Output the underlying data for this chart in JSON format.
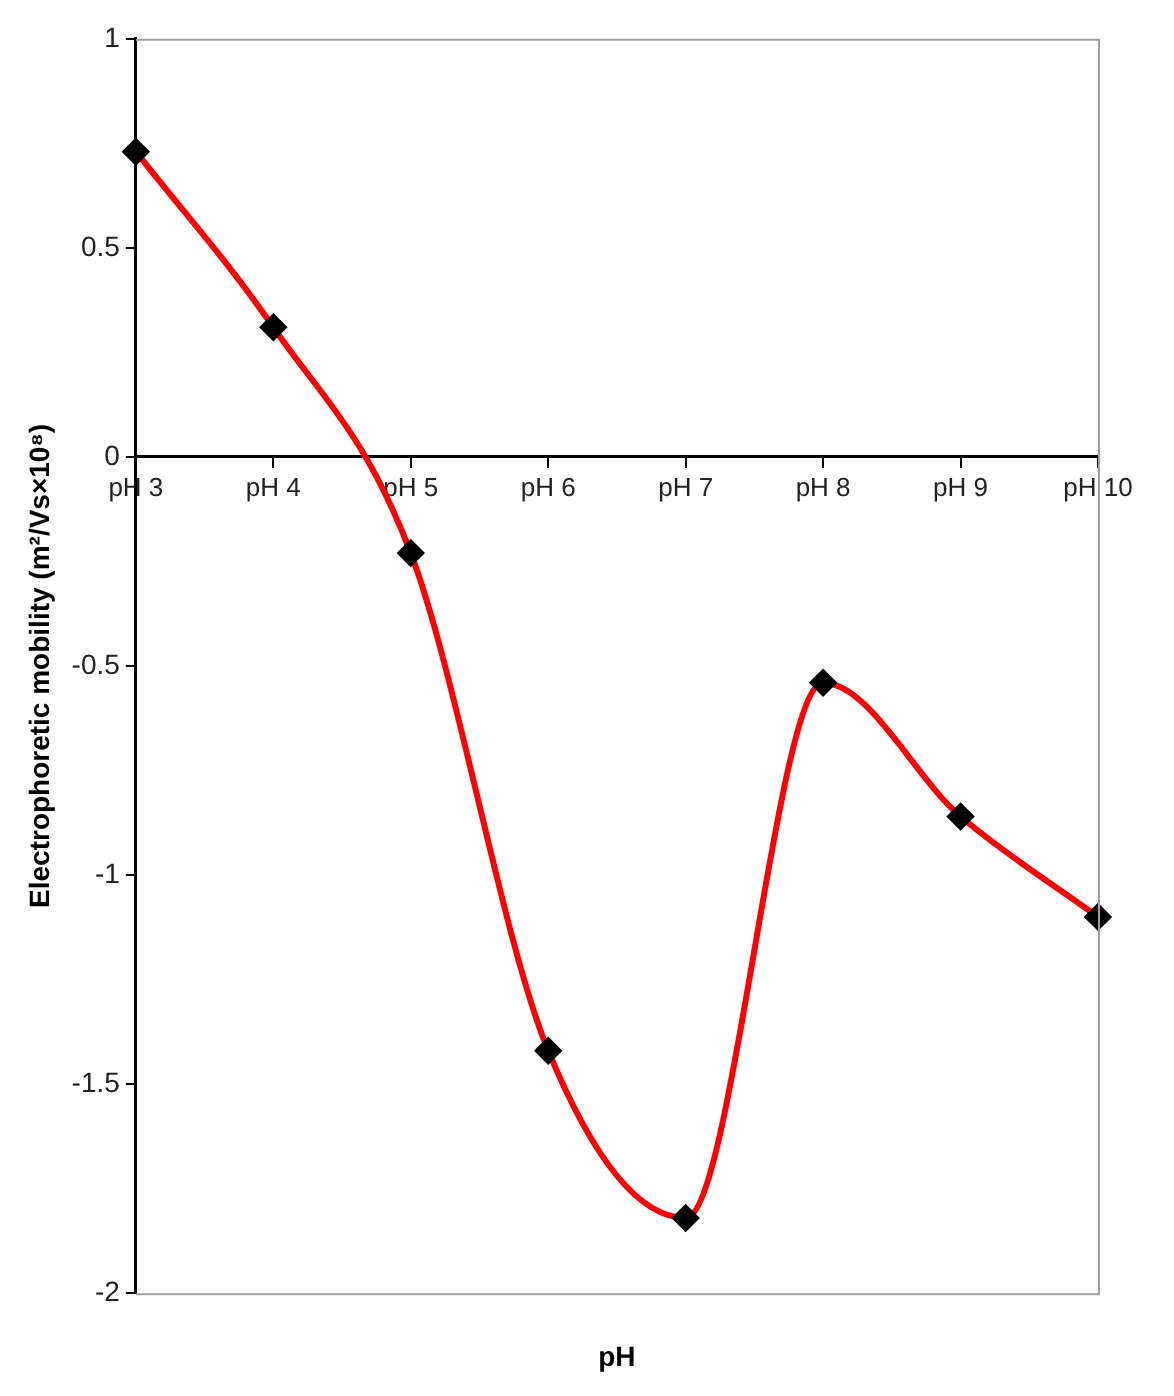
{
  "chart_data": {
    "type": "line",
    "xlabel": "pH",
    "ylabel": "Electrophoretic mobility (m²/Vs×10⁸)",
    "categories": [
      "pH 3",
      "pH 4",
      "pH 5",
      "pH 6",
      "pH 7",
      "pH 8",
      "pH 9",
      "pH 10"
    ],
    "series": [
      {
        "color": "#ff0000",
        "values": [
          0.73,
          0.31,
          -0.23,
          -1.42,
          -1.82,
          -0.54,
          -0.86,
          -1.1
        ]
      }
    ],
    "ylim": [
      -2,
      1
    ],
    "yticks": [
      -2,
      -1.5,
      -1,
      -0.5,
      0,
      0.5,
      1
    ],
    "grid": false,
    "legend": false,
    "marker": "diamond",
    "line_style": "solid"
  }
}
